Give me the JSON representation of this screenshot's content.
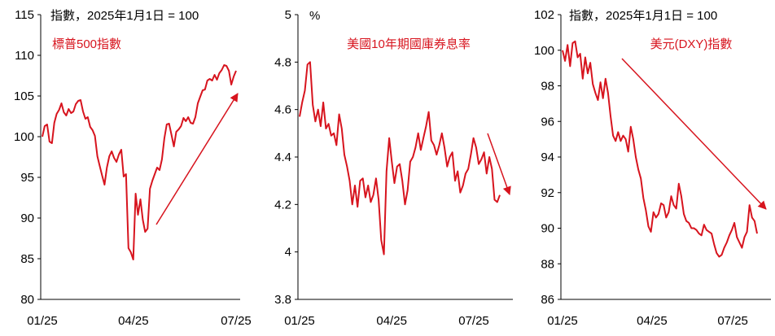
{
  "colors": {
    "line": "#d7141e",
    "axis": "#000000",
    "text": "#000000",
    "accent_text": "#d7141e"
  },
  "chart_data": [
    {
      "type": "line",
      "title": "標普500指數",
      "unit_label": "指數，2025年1月1日 = 100",
      "xlabel": "",
      "ylabel": "",
      "x_ticks": [
        "01/25",
        "04/25",
        "07/25"
      ],
      "ylim": [
        80,
        115
      ],
      "y_ticks": [
        80,
        85,
        90,
        95,
        100,
        105,
        110,
        115
      ],
      "grid": false,
      "trend_arrow": "up",
      "series": [
        {
          "values": [
            100.0,
            101.3,
            101.5,
            99.4,
            99.2,
            101.7,
            102.8,
            103.3,
            104.1,
            103.0,
            102.6,
            103.4,
            102.9,
            103.1,
            104.0,
            104.4,
            104.5,
            103.1,
            102.2,
            102.4,
            101.2,
            100.8,
            100.1,
            97.6,
            96.4,
            95.2,
            94.1,
            96.2,
            97.6,
            98.2,
            97.4,
            96.9,
            97.8,
            98.4,
            95.1,
            95.4,
            86.3,
            85.8,
            84.9,
            93.0,
            90.4,
            92.3,
            89.8,
            88.3,
            88.7,
            93.6,
            94.6,
            95.4,
            96.2,
            95.9,
            97.2,
            99.8,
            101.5,
            101.6,
            100.2,
            98.8,
            100.6,
            100.9,
            101.3,
            102.3,
            101.9,
            102.4,
            101.7,
            101.6,
            102.4,
            104.1,
            104.9,
            105.7,
            105.8,
            106.9,
            107.1,
            106.9,
            107.6,
            107.0,
            107.8,
            108.2,
            108.8,
            108.7,
            108.1,
            106.4,
            107.4,
            108.1
          ]
        }
      ]
    },
    {
      "type": "line",
      "title": "美國10年期國庫券息率",
      "unit_label": "%",
      "xlabel": "",
      "ylabel": "",
      "x_ticks": [
        "01/25",
        "04/25",
        "07/25"
      ],
      "ylim": [
        3.8,
        5.0
      ],
      "y_ticks": [
        3.8,
        4.0,
        4.2,
        4.4,
        4.6,
        4.8,
        5.0
      ],
      "grid": false,
      "trend_arrow": "down",
      "series": [
        {
          "values": [
            4.57,
            4.63,
            4.68,
            4.79,
            4.8,
            4.62,
            4.55,
            4.6,
            4.53,
            4.63,
            4.52,
            4.54,
            4.49,
            4.5,
            4.45,
            4.58,
            4.52,
            4.41,
            4.36,
            4.3,
            4.2,
            4.28,
            4.19,
            4.3,
            4.31,
            4.23,
            4.28,
            4.21,
            4.24,
            4.31,
            4.22,
            4.05,
            3.99,
            4.34,
            4.48,
            4.38,
            4.29,
            4.36,
            4.37,
            4.3,
            4.2,
            4.26,
            4.38,
            4.4,
            4.44,
            4.5,
            4.43,
            4.48,
            4.53,
            4.59,
            4.47,
            4.45,
            4.41,
            4.45,
            4.5,
            4.44,
            4.36,
            4.4,
            4.42,
            4.3,
            4.34,
            4.25,
            4.28,
            4.33,
            4.35,
            4.41,
            4.48,
            4.44,
            4.37,
            4.39,
            4.42,
            4.33,
            4.4,
            4.35,
            4.22,
            4.21,
            4.24
          ]
        }
      ]
    },
    {
      "type": "line",
      "title": "美元(DXY)指數",
      "unit_label": "指數，2025年1月1日 = 100",
      "xlabel": "",
      "ylabel": "",
      "x_ticks": [
        "01/25",
        "04/25",
        "07/25"
      ],
      "ylim": [
        86,
        102
      ],
      "y_ticks": [
        86,
        88,
        90,
        92,
        94,
        96,
        98,
        100,
        102
      ],
      "grid": false,
      "trend_arrow": "down",
      "series": [
        {
          "values": [
            100.0,
            99.4,
            100.3,
            99.1,
            100.4,
            100.5,
            99.6,
            99.8,
            98.4,
            99.6,
            98.7,
            99.3,
            98.1,
            97.6,
            97.2,
            98.2,
            97.3,
            98.4,
            97.6,
            96.3,
            95.2,
            94.9,
            95.4,
            94.9,
            95.2,
            95.0,
            94.3,
            95.7,
            95.0,
            94.0,
            93.3,
            92.8,
            91.7,
            91.0,
            90.1,
            89.8,
            90.9,
            90.6,
            90.8,
            91.4,
            91.3,
            90.6,
            90.9,
            91.8,
            91.3,
            91.1,
            92.5,
            91.8,
            90.8,
            90.4,
            90.3,
            90.0,
            90.0,
            89.9,
            89.7,
            89.6,
            90.2,
            89.9,
            89.8,
            89.7,
            89.1,
            88.6,
            88.4,
            88.5,
            88.9,
            89.2,
            89.6,
            89.9,
            90.3,
            89.5,
            89.2,
            88.9,
            89.5,
            89.8,
            91.3,
            90.6,
            90.4,
            89.7
          ]
        }
      ]
    }
  ]
}
